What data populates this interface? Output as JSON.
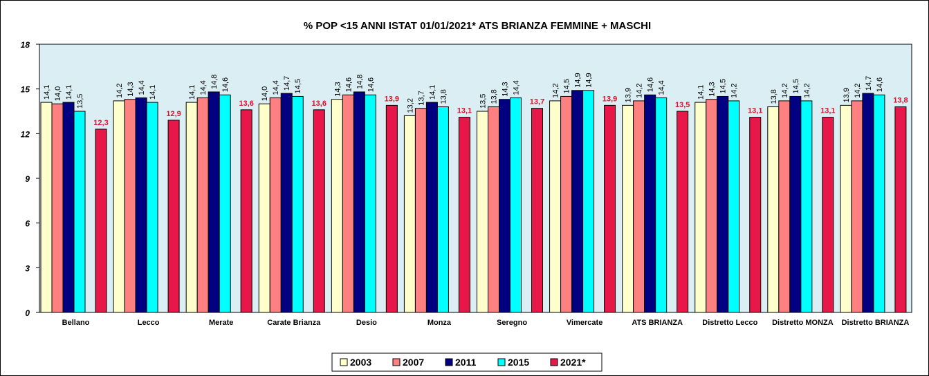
{
  "chart_data": {
    "type": "bar",
    "title": "% POP <15 ANNI ISTAT 01/01/2021*  ATS BRIANZA  FEMMINE + MASCHI",
    "categories": [
      "Bellano",
      "Lecco",
      "Merate",
      "Carate Brianza",
      "Desio",
      "Monza",
      "Seregno",
      "Vimercate",
      "ATS BRIANZA",
      "Distretto Lecco",
      "Distretto MONZA",
      "Distretto BRIANZA"
    ],
    "series": [
      {
        "name": "2003",
        "color": "#ffffcc",
        "values": [
          14.1,
          14.2,
          14.1,
          14.0,
          14.3,
          13.2,
          13.5,
          14.2,
          13.9,
          14.1,
          13.8,
          13.9
        ],
        "value_labels": [
          "14,1",
          "14,2",
          "14,1",
          "14,0",
          "14,3",
          "13,2",
          "13,5",
          "14,2",
          "13,9",
          "14,1",
          "13,8",
          "13,9"
        ]
      },
      {
        "name": "2007",
        "color": "#ff8080",
        "values": [
          14.0,
          14.3,
          14.4,
          14.4,
          14.6,
          13.7,
          13.8,
          14.5,
          14.2,
          14.3,
          14.2,
          14.2
        ],
        "value_labels": [
          "14,0",
          "14,3",
          "14,4",
          "14,4",
          "14,6",
          "13,7",
          "13,8",
          "14,5",
          "14,2",
          "14,3",
          "14,2",
          "14,2"
        ]
      },
      {
        "name": "2011",
        "color": "#000080",
        "values": [
          14.1,
          14.4,
          14.8,
          14.7,
          14.8,
          14.1,
          14.3,
          14.9,
          14.6,
          14.5,
          14.5,
          14.7
        ],
        "value_labels": [
          "14,1",
          "14,4",
          "14,8",
          "14,7",
          "14,8",
          "14,1",
          "14,3",
          "14,9",
          "14,6",
          "14,5",
          "14,5",
          "14,7"
        ]
      },
      {
        "name": "2015",
        "color": "#00ffff",
        "values": [
          13.5,
          14.1,
          14.6,
          14.5,
          14.6,
          13.8,
          14.4,
          14.9,
          14.4,
          14.2,
          14.2,
          14.6
        ],
        "value_labels": [
          "13,5",
          "14,1",
          "14,6",
          "14,5",
          "14,6",
          "13,8",
          "14,4",
          "14,9",
          "14,4",
          "14,2",
          "14,2",
          "14,6"
        ]
      },
      {
        "name": "2021*",
        "color": "#e8174a",
        "values": [
          12.3,
          12.9,
          13.6,
          13.6,
          13.9,
          13.1,
          13.7,
          13.9,
          13.5,
          13.1,
          13.1,
          13.8
        ],
        "value_labels": [
          "12,3",
          "12,9",
          "13,6",
          "13,6",
          "13,9",
          "13,1",
          "13,7",
          "13,9",
          "13,5",
          "13,1",
          "13,1",
          "13,8"
        ]
      }
    ],
    "ylim": [
      0,
      18
    ],
    "yticks": [
      0,
      3,
      6,
      9,
      12,
      15,
      18
    ],
    "legend": "bottom"
  }
}
